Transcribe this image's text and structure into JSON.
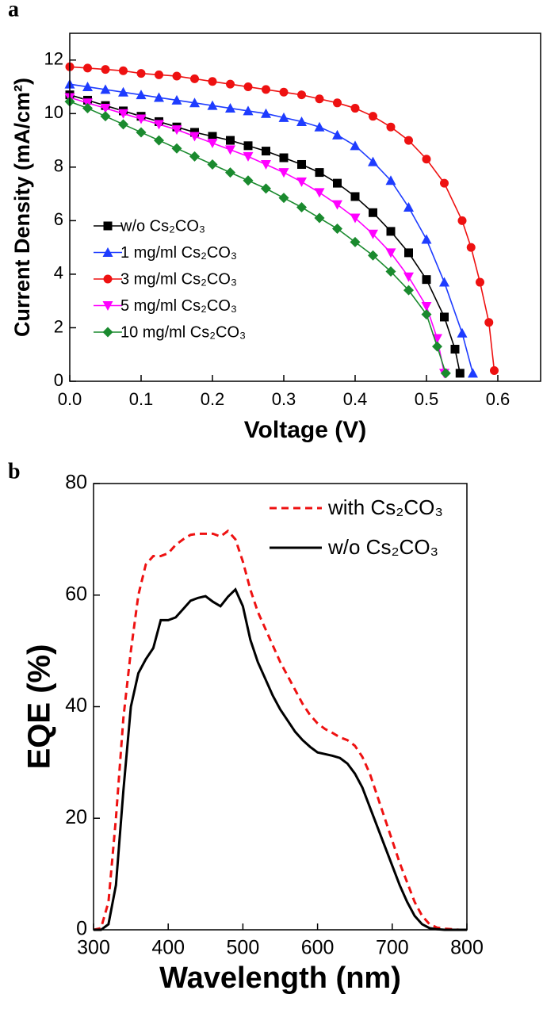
{
  "chart_data": [
    {
      "type": "line",
      "label": "a",
      "xlabel": "Voltage (V)",
      "ylabel": "Current Density (mA/cm²)",
      "xlim": [
        0,
        0.66
      ],
      "ylim": [
        0,
        13
      ],
      "xticks": [
        {
          "value": 0,
          "label": "0.0"
        },
        0.1,
        0.2,
        0.3,
        0.4,
        0.5,
        0.6
      ],
      "yticks": [
        0,
        2,
        4,
        6,
        8,
        10,
        12
      ],
      "series": [
        {
          "name": "w/o Cs₂CO₃",
          "color": "#000000",
          "marker": "square",
          "x": [
            0,
            0.025,
            0.05,
            0.075,
            0.1,
            0.125,
            0.15,
            0.175,
            0.2,
            0.225,
            0.25,
            0.275,
            0.3,
            0.325,
            0.35,
            0.375,
            0.4,
            0.425,
            0.45,
            0.475,
            0.5,
            0.525,
            0.54,
            0.547
          ],
          "values": [
            10.7,
            10.5,
            10.3,
            10.1,
            9.9,
            9.7,
            9.5,
            9.3,
            9.15,
            9.0,
            8.8,
            8.6,
            8.35,
            8.1,
            7.8,
            7.4,
            6.9,
            6.3,
            5.6,
            4.8,
            3.8,
            2.4,
            1.2,
            0.3
          ]
        },
        {
          "name": "1 mg/ml Cs₂CO₃",
          "color": "#1e3cff",
          "marker": "triangle-up",
          "x": [
            0,
            0.025,
            0.05,
            0.075,
            0.1,
            0.125,
            0.15,
            0.175,
            0.2,
            0.225,
            0.25,
            0.275,
            0.3,
            0.325,
            0.35,
            0.375,
            0.4,
            0.425,
            0.45,
            0.475,
            0.5,
            0.525,
            0.55,
            0.565
          ],
          "values": [
            11.1,
            11.0,
            10.9,
            10.8,
            10.7,
            10.6,
            10.5,
            10.4,
            10.3,
            10.2,
            10.1,
            10.0,
            9.85,
            9.7,
            9.5,
            9.2,
            8.8,
            8.2,
            7.5,
            6.5,
            5.3,
            3.7,
            1.8,
            0.3
          ]
        },
        {
          "name": "3 mg/ml Cs₂CO₃",
          "color": "#ee1111",
          "marker": "circle",
          "x": [
            0,
            0.025,
            0.05,
            0.075,
            0.1,
            0.125,
            0.15,
            0.175,
            0.2,
            0.225,
            0.25,
            0.275,
            0.3,
            0.325,
            0.35,
            0.375,
            0.4,
            0.425,
            0.45,
            0.475,
            0.5,
            0.525,
            0.55,
            0.5625,
            0.575,
            0.5875,
            0.595
          ],
          "values": [
            11.75,
            11.7,
            11.65,
            11.6,
            11.5,
            11.45,
            11.4,
            11.3,
            11.2,
            11.1,
            11.0,
            10.9,
            10.8,
            10.7,
            10.55,
            10.4,
            10.2,
            9.9,
            9.5,
            9.0,
            8.3,
            7.4,
            6.0,
            5.0,
            3.7,
            2.2,
            0.4
          ]
        },
        {
          "name": "5 mg/ml Cs₂CO₃",
          "color": "#ff00ff",
          "marker": "triangle-down",
          "x": [
            0,
            0.025,
            0.05,
            0.075,
            0.1,
            0.125,
            0.15,
            0.175,
            0.2,
            0.225,
            0.25,
            0.275,
            0.3,
            0.325,
            0.35,
            0.375,
            0.4,
            0.425,
            0.45,
            0.475,
            0.5,
            0.515,
            0.525
          ],
          "values": [
            10.6,
            10.4,
            10.2,
            10.0,
            9.8,
            9.6,
            9.4,
            9.15,
            8.9,
            8.65,
            8.4,
            8.1,
            7.8,
            7.45,
            7.05,
            6.6,
            6.1,
            5.5,
            4.8,
            3.9,
            2.8,
            1.6,
            0.3
          ]
        },
        {
          "name": "10 mg/ml Cs₂CO₃",
          "color": "#1a8a2e",
          "marker": "diamond",
          "x": [
            0,
            0.025,
            0.05,
            0.075,
            0.1,
            0.125,
            0.15,
            0.175,
            0.2,
            0.225,
            0.25,
            0.275,
            0.3,
            0.325,
            0.35,
            0.375,
            0.4,
            0.425,
            0.45,
            0.475,
            0.5,
            0.515,
            0.527
          ],
          "values": [
            10.45,
            10.2,
            9.9,
            9.6,
            9.3,
            9.0,
            8.7,
            8.4,
            8.1,
            7.8,
            7.5,
            7.2,
            6.85,
            6.5,
            6.1,
            5.7,
            5.2,
            4.7,
            4.1,
            3.4,
            2.5,
            1.3,
            0.3
          ]
        }
      ]
    },
    {
      "type": "line",
      "label": "b",
      "xlabel": "Wavelength (nm)",
      "ylabel": "EQE (%)",
      "xlim": [
        300,
        800
      ],
      "ylim": [
        0,
        80
      ],
      "xticks": [
        300,
        400,
        500,
        600,
        700,
        800
      ],
      "yticks": [
        0,
        20,
        40,
        60,
        80
      ],
      "x": [
        300,
        310,
        320,
        330,
        340,
        350,
        360,
        370,
        380,
        390,
        400,
        410,
        420,
        430,
        440,
        450,
        460,
        470,
        480,
        490,
        500,
        510,
        520,
        530,
        540,
        550,
        560,
        570,
        580,
        590,
        600,
        610,
        620,
        630,
        640,
        650,
        660,
        670,
        680,
        690,
        700,
        710,
        720,
        730,
        740,
        750,
        760,
        770,
        780,
        790,
        800
      ],
      "series": [
        {
          "name": "with Cs₂CO₃",
          "color": "#ee1111",
          "dashed": true,
          "values": [
            0,
            0.3,
            5,
            20,
            38,
            50,
            60,
            65.5,
            67,
            67,
            67.5,
            69,
            70,
            70.8,
            71,
            71,
            71,
            70.5,
            71.5,
            70,
            66,
            61,
            57,
            54,
            51,
            48,
            45.5,
            43,
            40.5,
            38.5,
            37,
            36,
            35.3,
            34.5,
            34,
            33,
            31,
            28,
            24,
            20,
            16,
            12,
            8.5,
            5,
            2.5,
            1,
            0.4,
            0.2,
            0.1,
            0,
            0
          ]
        },
        {
          "name": "w/o Cs₂CO₃",
          "color": "#000000",
          "dashed": false,
          "values": [
            0,
            0,
            1,
            8,
            25,
            40,
            46,
            48.5,
            50.5,
            55.5,
            55.5,
            56,
            57.5,
            59,
            59.5,
            59.8,
            58.8,
            58,
            59.7,
            61,
            58,
            52,
            48,
            45,
            42,
            39.5,
            37.5,
            35.5,
            34,
            32.8,
            31.8,
            31.5,
            31.2,
            30.8,
            29.8,
            28,
            25.5,
            22,
            18.5,
            15,
            11.5,
            8,
            5,
            2.5,
            1,
            0.3,
            0.1,
            0,
            0,
            0,
            0
          ]
        }
      ]
    }
  ]
}
